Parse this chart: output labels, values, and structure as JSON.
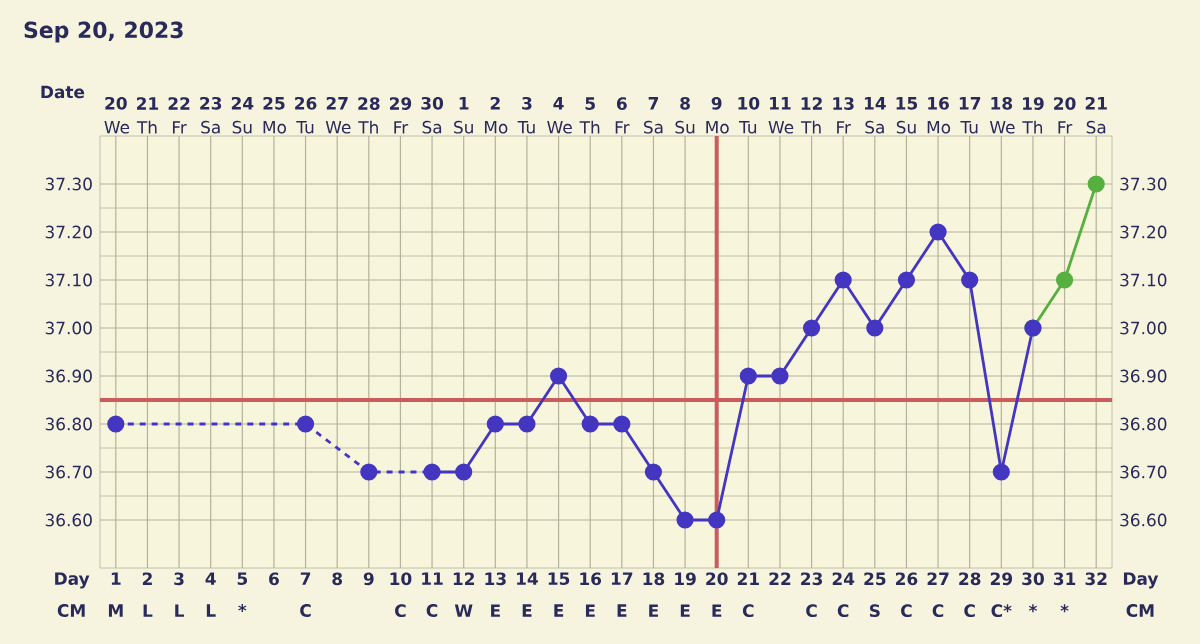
{
  "chart_data": {
    "type": "line",
    "title": "Sep 20, 2023",
    "xlabel": "Day CM",
    "x2label": "Date",
    "x": [
      1,
      2,
      3,
      4,
      5,
      6,
      7,
      8,
      9,
      10,
      11,
      12,
      13,
      14,
      15,
      16,
      17,
      18,
      19,
      20,
      21,
      22,
      23,
      24,
      25,
      26,
      27,
      28,
      29,
      30
    ],
    "xlim": [
      0.5,
      32.5
    ],
    "x2lim": [
      "2023-09-19T12:00",
      "2023-10-21T12:00"
    ],
    "xticks": [
      {
        "value": 1,
        "label": "1 M"
      },
      {
        "value": 2,
        "label": "2 L"
      },
      {
        "value": 3,
        "label": "3 L"
      },
      {
        "value": 4,
        "label": "4 L"
      },
      {
        "value": 5,
        "label": "5 *"
      },
      6,
      {
        "value": 7,
        "label": "7 C"
      },
      8,
      9,
      {
        "value": 10,
        "label": "10 C"
      },
      {
        "value": 11,
        "label": "11 C"
      },
      {
        "value": 12,
        "label": "12 W"
      },
      {
        "value": 13,
        "label": "13 E"
      },
      {
        "value": 14,
        "label": "14 E"
      },
      {
        "value": 15,
        "label": "15 E"
      },
      {
        "value": 16,
        "label": "16 E"
      },
      {
        "value": 17,
        "label": "17 E"
      },
      {
        "value": 18,
        "label": "18 E"
      },
      {
        "value": 19,
        "label": "19 E"
      },
      {
        "value": 20,
        "label": "20 E"
      },
      {
        "value": 21,
        "label": "21 C"
      },
      22,
      {
        "value": 23,
        "label": "23 C"
      },
      {
        "value": 24,
        "label": "24 C"
      },
      {
        "value": 25,
        "label": "25 S"
      },
      {
        "value": 26,
        "label": "26 C"
      },
      {
        "value": 27,
        "label": "27 C"
      },
      {
        "value": 28,
        "label": "28 C"
      },
      {
        "value": 29,
        "label": "29 C*"
      },
      {
        "value": 30,
        "label": "30 *"
      },
      {
        "value": 31,
        "label": "31 *"
      },
      32
    ],
    "x2ticks": [
      {
        "value": "2023-09-20",
        "label": "**20** We"
      },
      {
        "value": "2023-09-21",
        "label": "**21** Th"
      },
      {
        "value": "2023-09-22",
        "label": "**22** Fr"
      },
      {
        "value": "2023-09-23",
        "label": "**23** Sa"
      },
      {
        "value": "2023-09-24",
        "label": "**24** Su"
      },
      {
        "value": "2023-09-25",
        "label": "**25** Mo"
      },
      {
        "value": "2023-09-26",
        "label": "**26** Tu"
      },
      {
        "value": "2023-09-27",
        "label": "**27** We"
      },
      {
        "value": "2023-09-28",
        "label": "**28** Th"
      },
      {
        "value": "2023-09-29",
        "label": "**29** Fr"
      },
      {
        "value": "2023-09-30",
        "label": "**30** Sa"
      },
      {
        "value": "2023-10-01",
        "label": "**1** Su"
      },
      {
        "value": "2023-10-02",
        "label": "**2** Mo"
      },
      {
        "value": "2023-10-03",
        "label": "**3** Tu"
      },
      {
        "value": "2023-10-04",
        "label": "**4** We"
      },
      {
        "value": "2023-10-05",
        "label": "**5** Th"
      },
      {
        "value": "2023-10-06",
        "label": "**6** Fr"
      },
      {
        "value": "2023-10-07",
        "label": "**7** Sa"
      },
      {
        "value": "2023-10-08",
        "label": "**8** Su"
      },
      {
        "value": "2023-10-09",
        "label": "**9** Mo"
      },
      {
        "value": "2023-10-10",
        "label": "**10** Tu"
      },
      {
        "value": "2023-10-11",
        "label": "**11** We"
      },
      {
        "value": "2023-10-12",
        "label": "**12** Th"
      },
      {
        "value": "2023-10-13",
        "label": "**13** Fr"
      },
      {
        "value": "2023-10-14",
        "label": "**14** Sa"
      },
      {
        "value": "2023-10-15",
        "label": "**15** Su"
      },
      {
        "value": "2023-10-16",
        "label": "**16** Mo"
      },
      {
        "value": "2023-10-17",
        "label": "**17** Tu"
      },
      {
        "value": "2023-10-18",
        "label": "**18** We"
      },
      {
        "value": "2023-10-19",
        "label": "**19** Th"
      },
      {
        "value": "2023-10-20",
        "label": "**20** Fr"
      },
      {
        "value": "2023-10-21",
        "label": "**21** Sa"
      }
    ],
    "ylim": [
      36.5,
      37.4
    ],
    "y2lim": [
      36.5,
      37.4
    ],
    "yticks": [
      {
        "value": 36.6,
        "label": "36.60"
      },
      {
        "value": 36.7,
        "label": "36.70"
      },
      {
        "value": 36.8,
        "label": "36.80"
      },
      {
        "value": 36.9,
        "label": "36.90"
      },
      {
        "value": 37.0,
        "label": "37.00"
      },
      {
        "value": 37.1,
        "label": "37.10"
      },
      {
        "value": 37.2,
        "label": "37.20"
      },
      {
        "value": 37.3,
        "label": "37.30"
      }
    ],
    "y2ticks": [
      {
        "value": 36.6,
        "label": "36.60"
      },
      {
        "value": 36.7,
        "label": "36.70"
      },
      {
        "value": 36.8,
        "label": "36.80"
      },
      {
        "value": 36.9,
        "label": "36.90"
      },
      {
        "value": 37.0,
        "label": "37.00"
      },
      {
        "value": 37.1,
        "label": "37.10"
      },
      {
        "value": 37.2,
        "label": "37.20"
      },
      {
        "value": 37.3,
        "label": "37.30"
      }
    ],
    "grid": true,
    "marker": "circle",
    "line_style": "solid",
    "ref_lines": [
      {
        "axis": "y",
        "value": 36.85,
        "color": "#cc5c5c"
      },
      {
        "axis": "x",
        "value": 20,
        "color": "#cc5c5c"
      }
    ],
    "series": [
      {
        "color": "#55b040",
        "x": [
          30,
          31,
          32
        ],
        "values": [
          37.0,
          37.1,
          37.3
        ]
      },
      {
        "color": "#4436c0",
        "x": [
          1,
          7,
          9,
          11
        ],
        "values": [
          36.8,
          36.8,
          36.7,
          36.7
        ],
        "line_style": "dashed",
        "marker": "none"
      },
      {
        "color": "#4436c0",
        "values": [
          36.8,
          null,
          null,
          null,
          null,
          null,
          36.8,
          null,
          36.7,
          null,
          36.7,
          36.7,
          36.8,
          36.8,
          36.9,
          36.8,
          36.8,
          36.7,
          36.6,
          36.6,
          36.9,
          36.9,
          37.0,
          37.1,
          37.0,
          37.1,
          37.2,
          37.1,
          36.7,
          37.0
        ]
      }
    ]
  }
}
